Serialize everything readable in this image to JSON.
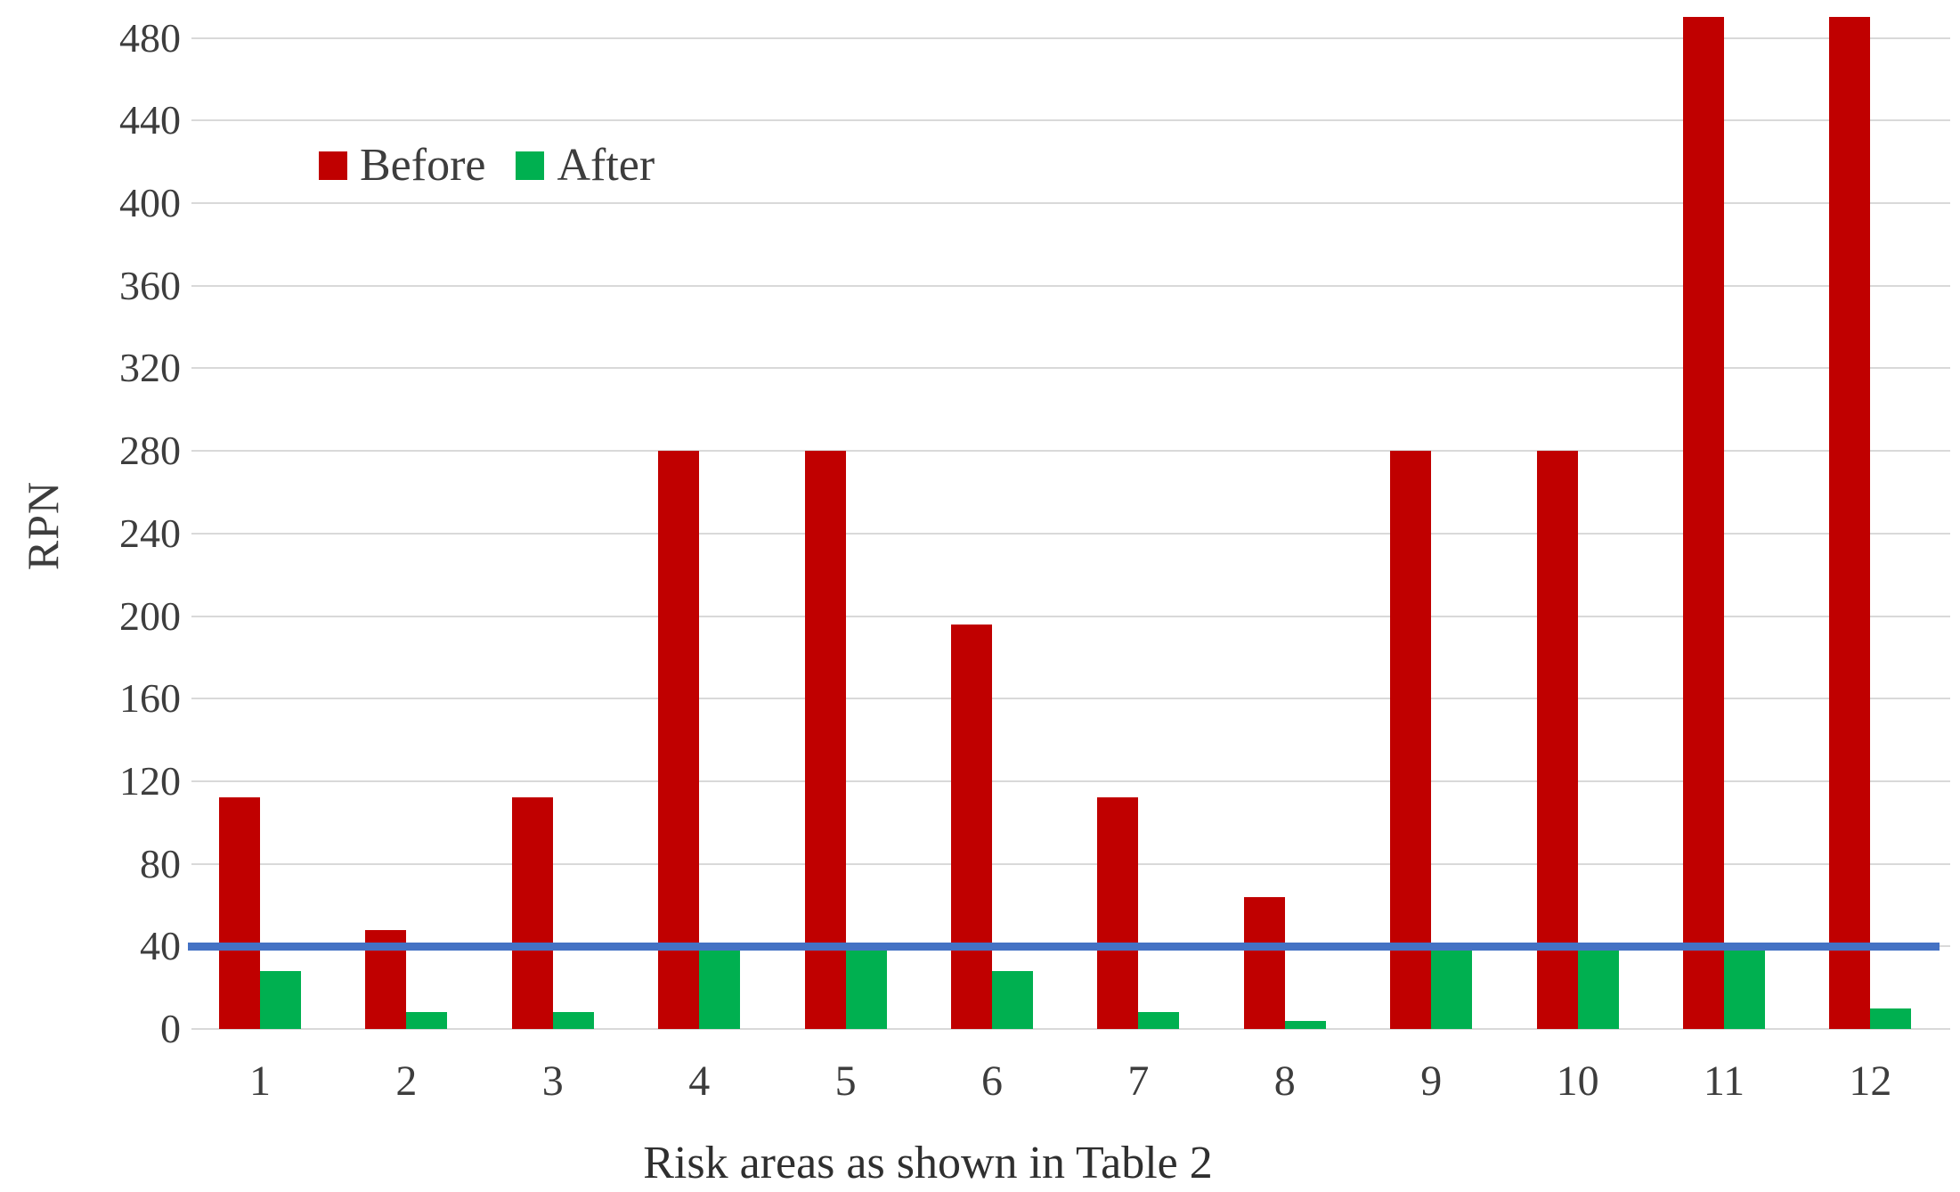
{
  "chart_data": {
    "type": "bar",
    "title": "",
    "xlabel": "Risk areas as shown in Table 2",
    "ylabel": "RPN",
    "categories": [
      "1",
      "2",
      "3",
      "4",
      "5",
      "6",
      "7",
      "8",
      "9",
      "10",
      "11",
      "12"
    ],
    "series": [
      {
        "name": "Before",
        "color": "#c00000",
        "values": [
          112,
          48,
          112,
          280,
          280,
          196,
          112,
          64,
          280,
          280,
          490,
          490
        ]
      },
      {
        "name": "After",
        "color": "#00b050",
        "values": [
          28,
          8,
          8,
          38,
          38,
          28,
          8,
          4,
          38,
          38,
          38,
          10
        ]
      }
    ],
    "threshold_line": {
      "value": 40,
      "color": "#4472c4"
    },
    "y_ticks": [
      0,
      40,
      80,
      120,
      160,
      200,
      240,
      280,
      320,
      360,
      400,
      440,
      480
    ],
    "ylim": [
      0,
      500
    ],
    "grid": true,
    "gridline_color": "#d9d9d9",
    "text_color": "#3d3d3d",
    "legend_position": "top-left-inside"
  }
}
